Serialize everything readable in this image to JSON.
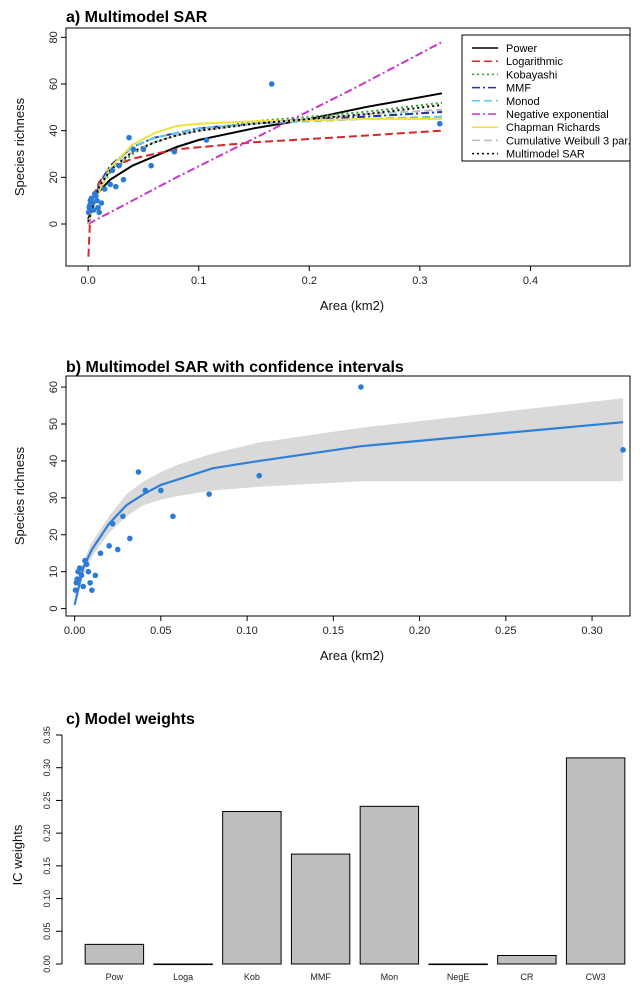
{
  "chart_data": [
    {
      "id": "a",
      "type": "line",
      "title": "a) Multimodel SAR",
      "xlabel": "Area (km2)",
      "ylabel": "Species richness",
      "xlim": [
        -0.02,
        0.49
      ],
      "ylim": [
        -18,
        84
      ],
      "xticks": [
        0.0,
        0.1,
        0.2,
        0.3,
        0.4
      ],
      "xtick_labels": [
        "0.0",
        "0.1",
        "0.2",
        "0.3",
        "0.4"
      ],
      "yticks": [
        0,
        20,
        40,
        60,
        80
      ],
      "ytick_labels": [
        "0",
        "20",
        "40",
        "60",
        "80"
      ],
      "legend_position": "top-right",
      "points": {
        "color": "#2b7bd6",
        "x": [
          0.0005,
          0.001,
          0.0015,
          0.002,
          0.003,
          0.004,
          0.005,
          0.006,
          0.007,
          0.008,
          0.009,
          0.01,
          0.012,
          0.015,
          0.02,
          0.022,
          0.025,
          0.028,
          0.032,
          0.037,
          0.041,
          0.05,
          0.057,
          0.078,
          0.107,
          0.166,
          0.318
        ],
        "y": [
          5,
          7,
          8,
          10,
          11,
          9,
          6,
          13,
          12,
          10,
          7,
          5,
          9,
          15,
          17,
          23,
          16,
          25,
          19,
          37,
          32,
          32,
          25,
          31,
          36,
          60,
          43
        ]
      },
      "series": [
        {
          "name": "Power",
          "color": "#000000",
          "dash": "solid",
          "x": [
            0.0,
            0.01,
            0.02,
            0.04,
            0.06,
            0.08,
            0.1,
            0.15,
            0.2,
            0.25,
            0.32
          ],
          "y": [
            2,
            14,
            19,
            25,
            29,
            33,
            36,
            41,
            45,
            50,
            56
          ]
        },
        {
          "name": "Logarithmic",
          "color": "#d62728",
          "dash": "long",
          "x": [
            0.0003,
            0.002,
            0.005,
            0.01,
            0.02,
            0.04,
            0.08,
            0.15,
            0.22,
            0.32
          ],
          "y": [
            -14,
            4,
            12,
            18,
            24,
            28,
            32,
            35,
            37,
            40
          ]
        },
        {
          "name": "Kobayashi",
          "color": "#2ca02c",
          "dash": "dot",
          "x": [
            0.0,
            0.01,
            0.02,
            0.04,
            0.06,
            0.08,
            0.1,
            0.15,
            0.2,
            0.25,
            0.32
          ],
          "y": [
            0,
            15,
            22,
            30,
            35,
            38,
            40,
            44,
            46,
            48,
            52
          ]
        },
        {
          "name": "MMF",
          "color": "#2030a0",
          "dash": "dashdot",
          "x": [
            0.0,
            0.01,
            0.02,
            0.04,
            0.06,
            0.08,
            0.1,
            0.15,
            0.2,
            0.25,
            0.32
          ],
          "y": [
            0,
            17,
            25,
            33,
            37,
            39,
            41,
            43,
            45,
            46,
            48
          ]
        },
        {
          "name": "Monod",
          "color": "#5bc8e8",
          "dash": "long",
          "x": [
            0.0,
            0.01,
            0.02,
            0.04,
            0.06,
            0.08,
            0.1,
            0.15,
            0.2,
            0.25,
            0.32
          ],
          "y": [
            0,
            16,
            24,
            33,
            37,
            39,
            41,
            43,
            44,
            45,
            46
          ]
        },
        {
          "name": "Negative exponential",
          "color": "#cc33cc",
          "dash": "dashdot",
          "x": [
            0.0,
            0.08,
            0.16,
            0.24,
            0.32
          ],
          "y": [
            0,
            20,
            39,
            58,
            78
          ]
        },
        {
          "name": "Chapman Richards",
          "color": "#f0e040",
          "dash": "solid",
          "x": [
            0.0,
            0.01,
            0.02,
            0.04,
            0.06,
            0.08,
            0.1,
            0.15,
            0.2,
            0.25,
            0.32
          ],
          "y": [
            0,
            14,
            24,
            34,
            39,
            42,
            43,
            44,
            44.5,
            45,
            45
          ]
        },
        {
          "name": "Cumulative Weibull 3 par.",
          "color": "#bbbbbb",
          "dash": "long",
          "x": [
            0.0,
            0.01,
            0.02,
            0.04,
            0.06,
            0.08,
            0.1,
            0.15,
            0.2,
            0.25,
            0.32
          ],
          "y": [
            0,
            16,
            23,
            31,
            35,
            38,
            40,
            43,
            45,
            47,
            49
          ]
        },
        {
          "name": "Multimodel SAR",
          "color": "#000000",
          "dash": "dot",
          "x": [
            0.0,
            0.01,
            0.02,
            0.04,
            0.06,
            0.08,
            0.1,
            0.15,
            0.2,
            0.25,
            0.32
          ],
          "y": [
            1,
            16,
            23,
            31,
            35,
            38,
            40,
            43,
            45,
            47,
            51
          ]
        }
      ]
    },
    {
      "id": "b",
      "type": "line",
      "title": "b) Multimodel SAR with confidence intervals",
      "xlabel": "Area (km2)",
      "ylabel": "Species richness",
      "xlim": [
        -0.005,
        0.322
      ],
      "ylim": [
        -2,
        63
      ],
      "xticks": [
        0.0,
        0.05,
        0.1,
        0.15,
        0.2,
        0.25,
        0.3
      ],
      "xtick_labels": [
        "0.00",
        "0.05",
        "0.10",
        "0.15",
        "0.20",
        "0.25",
        "0.30"
      ],
      "yticks": [
        0,
        10,
        20,
        30,
        40,
        50,
        60
      ],
      "ytick_labels": [
        "0",
        "10",
        "20",
        "30",
        "40",
        "50",
        "60"
      ],
      "points": {
        "color": "#2b7bd6",
        "x": [
          0.0005,
          0.001,
          0.0015,
          0.002,
          0.003,
          0.004,
          0.005,
          0.006,
          0.007,
          0.008,
          0.009,
          0.01,
          0.012,
          0.015,
          0.02,
          0.022,
          0.025,
          0.028,
          0.032,
          0.037,
          0.041,
          0.05,
          0.057,
          0.078,
          0.107,
          0.166,
          0.318
        ],
        "y": [
          5,
          7,
          8,
          10,
          11,
          9,
          6,
          13,
          12,
          10,
          7,
          5,
          9,
          15,
          17,
          23,
          16,
          25,
          19,
          37,
          32,
          32,
          25,
          31,
          36,
          60,
          43
        ]
      },
      "fit": {
        "color": "#2f7fd8",
        "x": [
          0.0,
          0.005,
          0.01,
          0.02,
          0.03,
          0.04,
          0.05,
          0.06,
          0.08,
          0.107,
          0.166,
          0.318
        ],
        "y": [
          1,
          11,
          16,
          23,
          28,
          31,
          33.5,
          35,
          38,
          40,
          44,
          50.5
        ]
      },
      "ci": {
        "color": "#d9d9d9",
        "x": [
          0.0,
          0.005,
          0.01,
          0.02,
          0.03,
          0.04,
          0.05,
          0.06,
          0.08,
          0.107,
          0.166,
          0.318
        ],
        "lower": [
          0,
          9,
          14,
          20.5,
          25,
          28,
          29.5,
          30.5,
          32,
          33,
          34.5,
          34.5
        ],
        "upper": [
          2,
          13,
          18,
          25,
          31,
          34.5,
          37,
          39,
          42,
          45,
          49,
          57
        ]
      }
    },
    {
      "id": "c",
      "type": "bar",
      "title": "c) Model weights",
      "ylabel": "IC weights",
      "ylim": [
        0,
        0.35
      ],
      "yticks": [
        0.0,
        0.05,
        0.1,
        0.15,
        0.2,
        0.25,
        0.3,
        0.35
      ],
      "ytick_labels": [
        "0.00",
        "0.05",
        "0.10",
        "0.15",
        "0.20",
        "0.25",
        "0.30",
        "0.35"
      ],
      "bar_color": "#bebebe",
      "categories": [
        "Pow",
        "Loga",
        "Kob",
        "MMF",
        "Mon",
        "NegE",
        "CR",
        "CW3"
      ],
      "values": [
        0.03,
        0.0,
        0.233,
        0.168,
        0.241,
        0.0,
        0.013,
        0.315
      ]
    }
  ]
}
